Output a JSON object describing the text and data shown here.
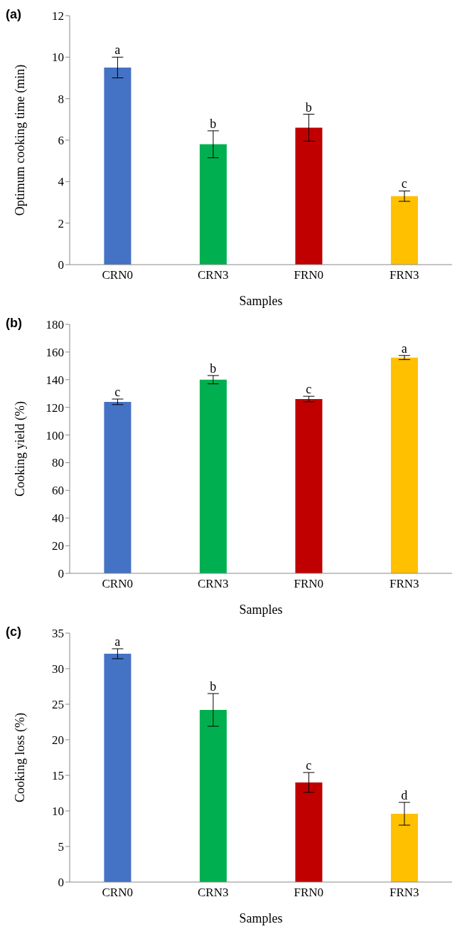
{
  "chart_data": [
    {
      "type": "bar",
      "title": "(a)",
      "xlabel": "Samples",
      "ylabel": "Optimum cooking time (min)",
      "categories": [
        "CRN0",
        "CRN3",
        "FRN0",
        "FRN3"
      ],
      "values": [
        9.5,
        5.8,
        6.6,
        3.3
      ],
      "errors": [
        0.5,
        0.65,
        0.65,
        0.25
      ],
      "colors": [
        "#4472c4",
        "#00b050",
        "#c00000",
        "#ffc000"
      ],
      "ylim": [
        0,
        12
      ],
      "yticks": [
        0,
        2,
        4,
        6,
        8,
        10,
        12
      ],
      "grid": false,
      "annotations": [
        {
          "text": "a",
          "x": "CRN0",
          "y": 10
        },
        {
          "text": "b",
          "x": "CRN3",
          "y": 6.45
        },
        {
          "text": "b",
          "x": "FRN0",
          "y": 7.25
        },
        {
          "text": "c",
          "x": "FRN3",
          "y": 3.55
        }
      ]
    },
    {
      "type": "bar",
      "title": "(b)",
      "xlabel": "Samples",
      "ylabel": "Cooking yield (%)",
      "categories": [
        "CRN0",
        "CRN3",
        "FRN0",
        "FRN3"
      ],
      "values": [
        124,
        140,
        126,
        156
      ],
      "errors": [
        2,
        3,
        2,
        1.5
      ],
      "colors": [
        "#4472c4",
        "#00b050",
        "#c00000",
        "#ffc000"
      ],
      "ylim": [
        0,
        180
      ],
      "yticks": [
        0,
        20,
        40,
        60,
        80,
        100,
        120,
        140,
        160,
        180
      ],
      "grid": false,
      "annotations": [
        {
          "text": "c",
          "x": "CRN0",
          "y": 126
        },
        {
          "text": "b",
          "x": "CRN3",
          "y": 143
        },
        {
          "text": "c",
          "x": "FRN0",
          "y": 128
        },
        {
          "text": "a",
          "x": "FRN3",
          "y": 157.5
        }
      ]
    },
    {
      "type": "bar",
      "title": "(c)",
      "xlabel": "Samples",
      "ylabel": "Cooking loss (%)",
      "categories": [
        "CRN0",
        "CRN3",
        "FRN0",
        "FRN3"
      ],
      "values": [
        32.1,
        24.2,
        14.0,
        9.6
      ],
      "errors": [
        0.7,
        2.3,
        1.4,
        1.6
      ],
      "colors": [
        "#4472c4",
        "#00b050",
        "#c00000",
        "#ffc000"
      ],
      "ylim": [
        0,
        35
      ],
      "yticks": [
        0,
        5,
        10,
        15,
        20,
        25,
        30,
        35
      ],
      "grid": false,
      "annotations": [
        {
          "text": "a",
          "x": "CRN0",
          "y": 32.8
        },
        {
          "text": "b",
          "x": "CRN3",
          "y": 26.5
        },
        {
          "text": "c",
          "x": "FRN0",
          "y": 15.4
        },
        {
          "text": "d",
          "x": "FRN3",
          "y": 11.2
        }
      ]
    }
  ]
}
